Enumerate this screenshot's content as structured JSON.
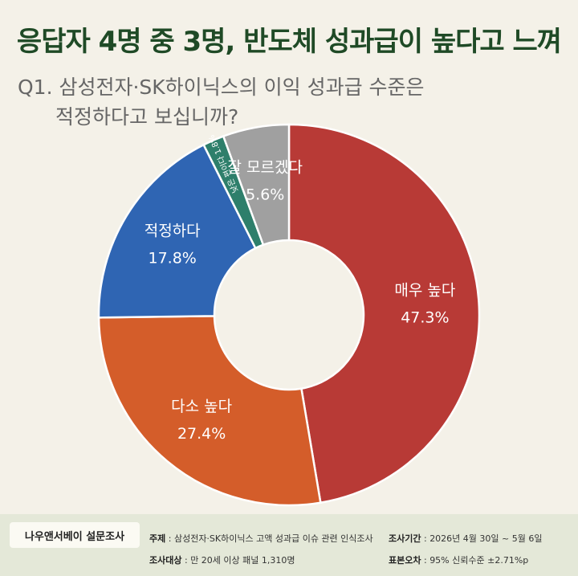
{
  "headline": "응답자 4명 중 3명, 반도체 성과급이 높다고 느껴",
  "question": {
    "line1": "Q1. 삼성전자·SK하이닉스의 이익 성과급 수준은",
    "line2": "적정하다고 보십니까?"
  },
  "chart_data": {
    "type": "pie",
    "title": "",
    "slices": [
      {
        "label": "매우 높다",
        "value": 47.3,
        "display": "47.3%",
        "color": "#b83a36"
      },
      {
        "label": "다소 높다",
        "value": 27.4,
        "display": "27.4%",
        "color": "#d45d2a"
      },
      {
        "label": "적정하다",
        "value": 17.8,
        "display": "17.8%",
        "color": "#2f65b3"
      },
      {
        "label": "낮은 편이다",
        "value": 1.8,
        "display": "1.8%",
        "color": "#2e7f6b"
      },
      {
        "label": "잘 모르겠다",
        "value": 5.6,
        "display": "5.6%",
        "color": "#a0a0a0"
      }
    ]
  },
  "footer": {
    "brand": "나우앤서베이 설문조사",
    "topic_label": "주제",
    "topic_value": "삼성전자·SK하이닉스 고액 성과급 이슈 관련 인식조사",
    "period_label": "조사기간",
    "period_value": "2026년 4월 30일 ~ 5월 6일",
    "target_label": "조사대상",
    "target_value": "만 20세 이상 패널 1,310명",
    "error_label": "표본오차",
    "error_value": "95% 신뢰수준 ±2.71%p"
  }
}
